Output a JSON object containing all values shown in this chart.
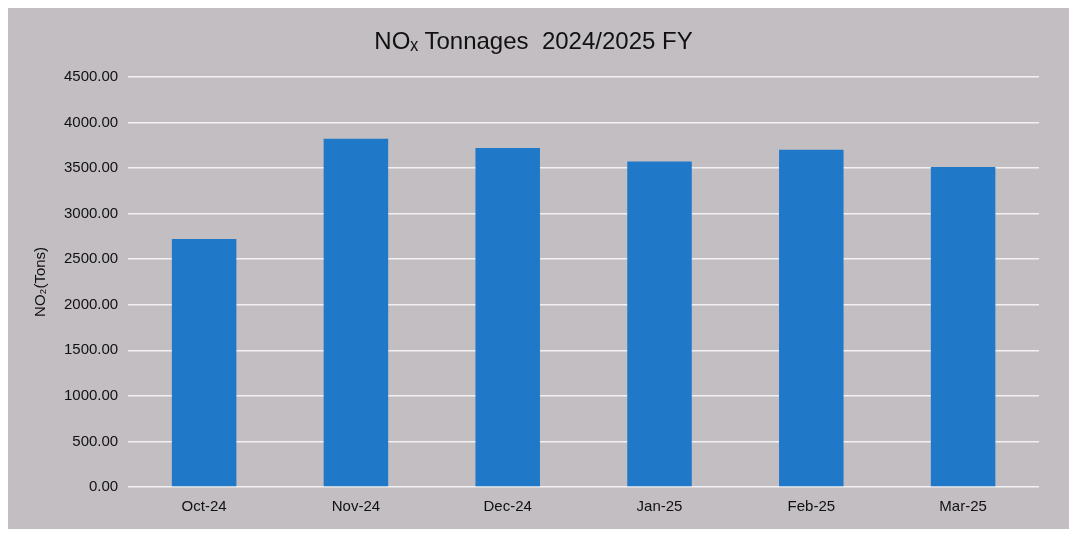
{
  "chart_data": {
    "type": "bar",
    "title": "NOₓ Tonnages  2024/2025 FY",
    "ylabel": "NO₂(Tons)",
    "categories": [
      "Oct-24",
      "Nov-24",
      "Dec-24",
      "Jan-25",
      "Feb-25",
      "Mar-25"
    ],
    "values": [
      2720,
      3820,
      3720,
      3570,
      3700,
      3510
    ],
    "color": "#1f78c8",
    "ylim": [
      0,
      4500
    ],
    "yticks": [
      {
        "value": 0,
        "label": "0.00"
      },
      {
        "value": 500,
        "label": "500.00"
      },
      {
        "value": 1000,
        "label": "1000.00"
      },
      {
        "value": 1500,
        "label": "1500.00"
      },
      {
        "value": 2000,
        "label": "2000.00"
      },
      {
        "value": 2500,
        "label": "2500.00"
      },
      {
        "value": 3000,
        "label": "3000.00"
      },
      {
        "value": 3500,
        "label": "3500.00"
      },
      {
        "value": 4000,
        "label": "4000.00"
      },
      {
        "value": 4500,
        "label": "4500.00"
      }
    ],
    "grid": "y",
    "legend": false
  }
}
